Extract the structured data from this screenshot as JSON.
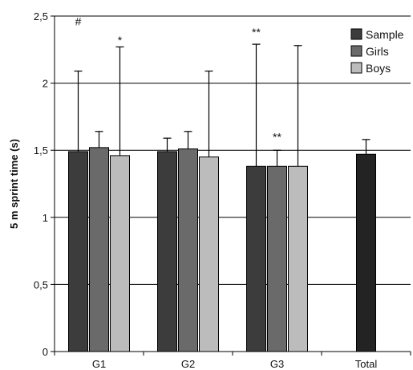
{
  "chart_data": {
    "type": "bar",
    "ylabel": "5 m sprint time (s)",
    "xlabel": "",
    "ylim": [
      0,
      2.5
    ],
    "yticks": [
      "0",
      "0,5",
      "1",
      "1,5",
      "2",
      "2,5"
    ],
    "ytick_values": [
      0,
      0.5,
      1,
      1.5,
      2,
      2.5
    ],
    "grid": true,
    "legend_position": "top-right",
    "categories": [
      "G1",
      "G2",
      "G3",
      "Total"
    ],
    "series": [
      {
        "name": "Sample",
        "color": "#3c3c3c",
        "values": [
          1.49,
          1.49,
          1.38,
          null
        ],
        "errors": [
          0.6,
          0.1,
          0.91,
          null
        ]
      },
      {
        "name": "Girls",
        "color": "#6a6a6a",
        "values": [
          1.52,
          1.51,
          1.38,
          null
        ],
        "errors": [
          0.12,
          0.13,
          0.12,
          null
        ]
      },
      {
        "name": "Boys",
        "color": "#bcbcbc",
        "values": [
          1.46,
          1.45,
          1.38,
          null
        ],
        "errors": [
          0.81,
          0.64,
          0.9,
          null
        ]
      }
    ],
    "total": {
      "value": 1.47,
      "error": 0.11,
      "color": "#232323"
    },
    "annotations": [
      {
        "text": "#",
        "category": 0,
        "series": 0,
        "at": 2.46
      },
      {
        "text": "*",
        "category": 0,
        "series": 2,
        "at": 2.32
      },
      {
        "text": "**",
        "category": 2,
        "series": 0,
        "at": 2.38
      },
      {
        "text": "**",
        "category": 2,
        "series": 1,
        "at": 1.6
      }
    ]
  }
}
